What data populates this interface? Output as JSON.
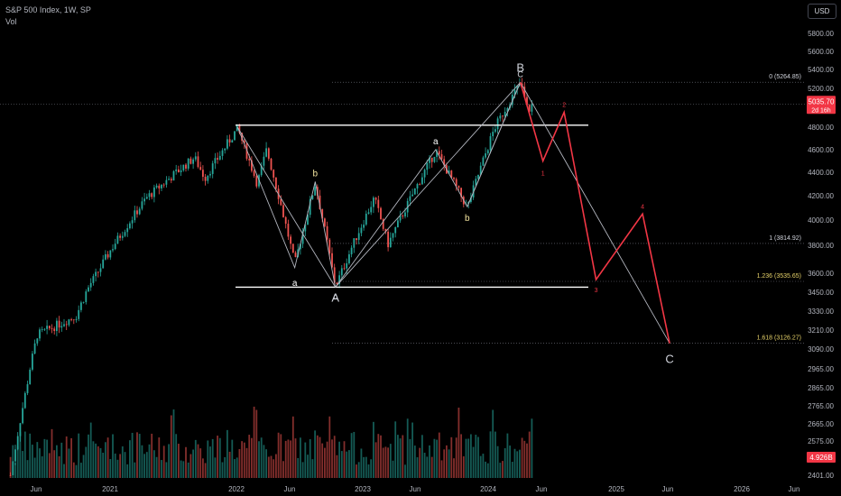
{
  "header": {
    "title": "S&P 500 Index, 1W, SP",
    "volume_label": "Vol",
    "currency_button": "USD"
  },
  "colors": {
    "background": "#000000",
    "up": "#26a69a",
    "down": "#ef5350",
    "fib_line": "#787b86",
    "wave_projection": "#f23645",
    "wave_outline": "#b2b5be",
    "label_yellow": "#f5e6a0",
    "price_tag": "#f23645"
  },
  "chart_data": {
    "type": "candlestick",
    "title": "S&P 500 Index, 1W, SP",
    "y_axis_ticks": [
      5800,
      5600,
      5400,
      5200,
      5000,
      4800,
      4600,
      4400,
      4200,
      4000,
      3800,
      3600,
      3450,
      3330,
      3210,
      3090,
      2965,
      2865,
      2765,
      2665,
      2575,
      2401
    ],
    "x_axis_ticks": [
      "Jun",
      "2021",
      "2022",
      "Jun",
      "2023",
      "Jun",
      "2024",
      "Jun",
      "2025",
      "Jun",
      "2026",
      "Jun"
    ],
    "current_price": {
      "value": "5035.70",
      "countdown": "2d 16h"
    },
    "volume_tag": "4.926B",
    "fib_levels": [
      {
        "ratio": "0",
        "value": 5264.85,
        "label": "0 (5264.85)"
      },
      {
        "ratio": "1",
        "value": 3814.92,
        "label": "1 (3814.92)"
      },
      {
        "ratio": "1.236",
        "value": 3535.65,
        "label": "1.236 (3535.65)"
      },
      {
        "ratio": "1.618",
        "value": 3126.27,
        "label": "1.618 (3126.27)"
      }
    ],
    "range_lines": [
      4820,
      3490
    ],
    "wave_labels": [
      "A",
      "B",
      "C",
      "a",
      "b",
      "c",
      "1",
      "2",
      "3",
      "4"
    ],
    "projection_path": [
      {
        "date": "2024-03-28",
        "value": 5264
      },
      {
        "date": "2024-06-01",
        "value": 4500
      },
      {
        "date": "2024-08-01",
        "value": 4950
      },
      {
        "date": "2024-11-01",
        "value": 3550
      },
      {
        "date": "2025-03-15",
        "value": 4050
      },
      {
        "date": "2025-06-01",
        "value": 3126
      }
    ],
    "grid": false,
    "legend": "none"
  }
}
